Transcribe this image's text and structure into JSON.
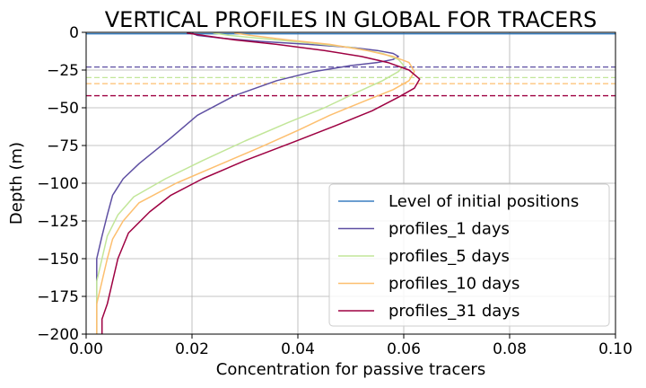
{
  "chart_data": {
    "type": "line",
    "title": "VERTICAL PROFILES IN GLOBAL FOR TRACERS",
    "xlabel": "Concentration for passive tracers",
    "ylabel": "Depth (m)",
    "xlim": [
      0.0,
      0.1
    ],
    "ylim": [
      -200,
      0
    ],
    "xticks": [
      0.0,
      0.02,
      0.04,
      0.06,
      0.08,
      0.1
    ],
    "xtick_labels": [
      "0.00",
      "0.02",
      "0.04",
      "0.06",
      "0.08",
      "0.10"
    ],
    "yticks": [
      0,
      -25,
      -50,
      -75,
      -100,
      -125,
      -150,
      -175,
      -200
    ],
    "ytick_labels": [
      "0",
      "−25",
      "−50",
      "−75",
      "−100",
      "−125",
      "−150",
      "−175",
      "−200"
    ],
    "grid": true,
    "legend_position": "lower-right",
    "initial_level": {
      "name": "Level of initial positions",
      "depth": -1,
      "color": "#3a7fc0"
    },
    "series": [
      {
        "name": "profiles_1 days",
        "color": "#5e4fa2",
        "mean_depth": -23,
        "x": [
          0.02,
          0.021,
          0.026,
          0.033,
          0.042,
          0.05,
          0.055,
          0.058,
          0.059,
          0.058,
          0.055,
          0.05,
          0.043,
          0.036,
          0.028,
          0.021,
          0.016,
          0.01,
          0.007,
          0.005,
          0.004,
          0.003,
          0.002,
          0.002,
          0.002,
          0.002
        ],
        "y": [
          -0.5,
          -2,
          -4,
          -6,
          -8,
          -10,
          -12,
          -14,
          -16,
          -18,
          -20,
          -22,
          -26,
          -32,
          -42,
          -55,
          -70,
          -87,
          -97,
          -108,
          -121,
          -135,
          -150,
          -165,
          -180,
          -200
        ]
      },
      {
        "name": "profiles_5 days",
        "color": "#c2e699",
        "mean_depth": -30,
        "x": [
          0.024,
          0.027,
          0.033,
          0.042,
          0.05,
          0.056,
          0.059,
          0.06,
          0.059,
          0.056,
          0.051,
          0.045,
          0.038,
          0.03,
          0.022,
          0.015,
          0.009,
          0.006,
          0.004,
          0.003,
          0.002,
          0.002,
          0.002
        ],
        "y": [
          -0.5,
          -2,
          -4,
          -7,
          -10,
          -14,
          -18,
          -22,
          -26,
          -32,
          -40,
          -50,
          -60,
          -72,
          -85,
          -97,
          -109,
          -121,
          -135,
          -150,
          -165,
          -180,
          -200
        ]
      },
      {
        "name": "profiles_10 days",
        "color": "#fdbf6f",
        "mean_depth": -34,
        "x": [
          0.028,
          0.031,
          0.038,
          0.046,
          0.053,
          0.058,
          0.061,
          0.062,
          0.061,
          0.058,
          0.053,
          0.046,
          0.04,
          0.033,
          0.025,
          0.017,
          0.01,
          0.007,
          0.005,
          0.004,
          0.003,
          0.002,
          0.002
        ],
        "y": [
          -0.5,
          -2,
          -5,
          -8,
          -12,
          -16,
          -20,
          -26,
          -32,
          -38,
          -45,
          -55,
          -65,
          -76,
          -88,
          -100,
          -113,
          -125,
          -137,
          -150,
          -165,
          -180,
          -200
        ]
      },
      {
        "name": "profiles_31 days",
        "color": "#9e0142",
        "mean_depth": -42,
        "x": [
          0.019,
          0.022,
          0.028,
          0.036,
          0.045,
          0.052,
          0.057,
          0.061,
          0.063,
          0.062,
          0.059,
          0.054,
          0.047,
          0.039,
          0.03,
          0.022,
          0.016,
          0.012,
          0.008,
          0.006,
          0.005,
          0.004,
          0.003,
          0.003
        ],
        "y": [
          -0.5,
          -2,
          -5,
          -8,
          -12,
          -16,
          -20,
          -25,
          -31,
          -37,
          -43,
          -52,
          -62,
          -73,
          -85,
          -97,
          -108,
          -119,
          -133,
          -150,
          -165,
          -180,
          -190,
          -200
        ]
      }
    ]
  }
}
